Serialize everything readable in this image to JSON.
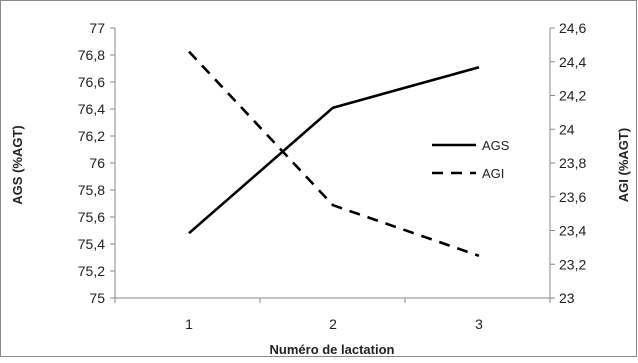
{
  "chart_data": {
    "type": "line",
    "title": "",
    "xlabel": "Numéro de lactation",
    "ylabel_left": "AGS (%AGT)",
    "ylabel_right": "AGI (%AGT)",
    "categories": [
      "1",
      "2",
      "3"
    ],
    "ylim_left": [
      75,
      77
    ],
    "ylim_right": [
      23,
      24.6
    ],
    "y_ticks_left": [
      "75",
      "75,2",
      "75,4",
      "75,6",
      "75,8",
      "76",
      "76,2",
      "76,4",
      "76,6",
      "76,8",
      "77"
    ],
    "y_ticks_right": [
      "23",
      "23,2",
      "23,4",
      "23,6",
      "23,8",
      "24",
      "24,2",
      "24,4",
      "24,6"
    ],
    "grid": false,
    "legend_position": "right",
    "series": [
      {
        "name": "AGS",
        "axis": "left",
        "style": "solid",
        "color": "#000000",
        "values": [
          75.48,
          76.41,
          76.71
        ]
      },
      {
        "name": "AGI",
        "axis": "right",
        "style": "dashed",
        "color": "#000000",
        "values": [
          24.46,
          23.55,
          23.25
        ]
      }
    ]
  }
}
